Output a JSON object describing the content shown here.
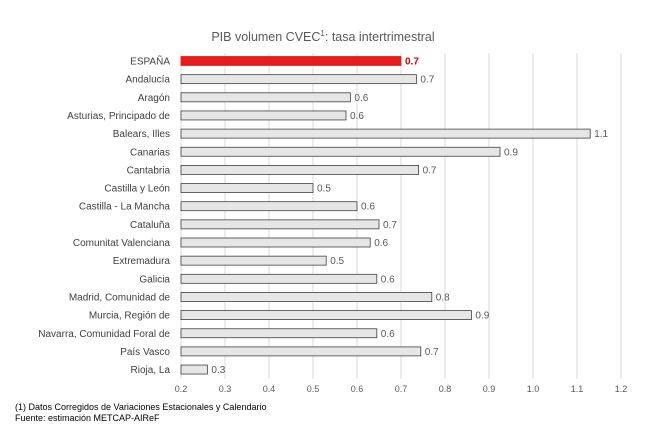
{
  "chart_data": {
    "type": "bar",
    "orientation": "horizontal",
    "title": "PIB volumen CVEC",
    "title_superscript": "1",
    "title_suffix": ": tasa intertrimestral",
    "categories": [
      "ESPAÑA",
      "Andalucía",
      "Aragón",
      "Asturias, Principado de",
      "Balears, Illes",
      "Canarias",
      "Cantabria",
      "Castilla y León",
      "Castilla - La Mancha",
      "Cataluña",
      "Comunitat Valenciana",
      "Extremadura",
      "Galicia",
      "Madrid, Comunidad de",
      "Murcia, Región de",
      "Navarra, Comunidad Foral de",
      "País Vasco",
      "Rioja, La"
    ],
    "values": [
      0.7,
      0.735,
      0.585,
      0.575,
      1.13,
      0.925,
      0.74,
      0.5,
      0.6,
      0.65,
      0.63,
      0.53,
      0.645,
      0.77,
      0.86,
      0.645,
      0.745,
      0.26
    ],
    "value_labels": [
      "0.7",
      "0.7",
      "0.6",
      "0.6",
      "1.1",
      "0.9",
      "0.7",
      "0.5",
      "0.6",
      "0.7",
      "0.6",
      "0.5",
      "0.6",
      "0.8",
      "0.9",
      "0.6",
      "0.7",
      "0.3"
    ],
    "highlight_index": 0,
    "xlim": [
      0.2,
      1.2
    ],
    "xticks": [
      0.2,
      0.3,
      0.4,
      0.5,
      0.6,
      0.7,
      0.8,
      0.9,
      1.0,
      1.1,
      1.2
    ],
    "xtick_labels": [
      "0.2",
      "0.3",
      "0.4",
      "0.5",
      "0.6",
      "0.7",
      "0.8",
      "0.9",
      "1.0",
      "1.1",
      "1.2"
    ],
    "grid": true,
    "colors": {
      "highlight": "#e51c1c",
      "bar": "#e6e6e6",
      "bar_edge": "#404040",
      "grid": "#d9d9d9",
      "highlight_label": "#d40000"
    }
  },
  "footnotes": {
    "note": "(1) Datos Corregidos de Variaciones Estacionales y Calendario",
    "source": "Fuente: estimación METCAP-AIReF"
  }
}
